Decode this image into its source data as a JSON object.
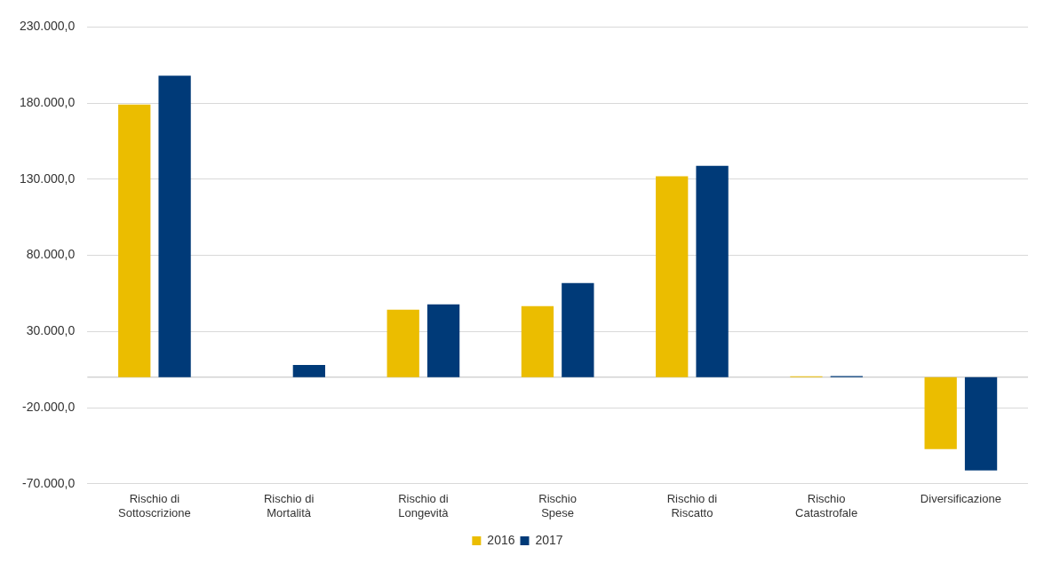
{
  "chart_data": {
    "type": "bar",
    "categories": [
      "Rischio di Sottoscrizione",
      "Rischio di Mortalità",
      "Rischio di Longevità",
      "Rischio Spese",
      "Rischio di Riscatto",
      "Rischio Catastrofale",
      "Diversificazione"
    ],
    "series": [
      {
        "name": "2016",
        "color": "#ebbd00",
        "values": [
          179000,
          0,
          44400,
          46600,
          132000,
          600,
          -47200
        ]
      },
      {
        "name": "2017",
        "color": "#003a78",
        "values": [
          198000,
          8000,
          47800,
          61800,
          138800,
          800,
          -61200
        ]
      }
    ],
    "ylim": [
      -70000,
      230000
    ],
    "yticks": [
      {
        "value": -70000,
        "label": "-70.000,0"
      },
      {
        "value": -20000,
        "label": "-20.000,0"
      },
      {
        "value": 30000,
        "label": "30.000,0"
      },
      {
        "value": 80000,
        "label": "80.000,0"
      },
      {
        "value": 130000,
        "label": "130.000,0"
      },
      {
        "value": 180000,
        "label": "180.000,0"
      },
      {
        "value": 230000,
        "label": "230.000,0"
      }
    ],
    "grid": "y",
    "legend": "bottom"
  }
}
